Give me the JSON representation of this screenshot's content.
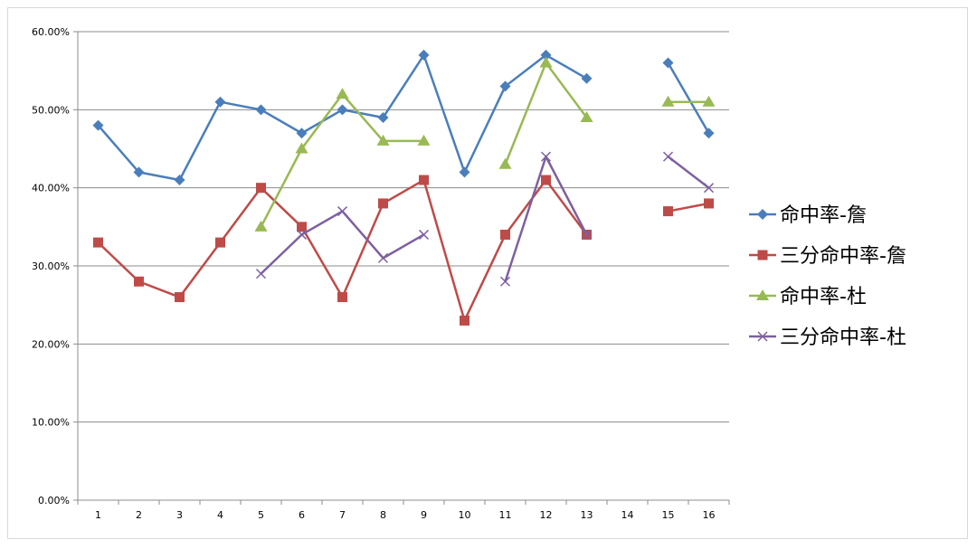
{
  "chart_data": {
    "type": "line",
    "categories": [
      "1",
      "2",
      "3",
      "4",
      "5",
      "6",
      "7",
      "8",
      "9",
      "10",
      "11",
      "12",
      "13",
      "14",
      "15",
      "16"
    ],
    "ylim": [
      0,
      0.6
    ],
    "yticks": [
      {
        "value": 0,
        "label": "0.00%"
      },
      {
        "value": 0.1,
        "label": "10.00%"
      },
      {
        "value": 0.2,
        "label": "20.00%"
      },
      {
        "value": 0.3,
        "label": "30.00%"
      },
      {
        "value": 0.4,
        "label": "40.00%"
      },
      {
        "value": 0.5,
        "label": "50.00%"
      },
      {
        "value": 0.6,
        "label": "60.00%"
      }
    ],
    "grid": true,
    "legend_position": "right",
    "series": [
      {
        "name": "命中率-詹",
        "color": "#4a7ebb",
        "marker": "diamond",
        "values": [
          0.48,
          0.42,
          0.41,
          0.51,
          0.5,
          0.47,
          0.5,
          0.49,
          0.57,
          0.42,
          0.53,
          0.57,
          0.54,
          null,
          0.56,
          0.47
        ]
      },
      {
        "name": "三分命中率-詹",
        "color": "#be4b48",
        "marker": "square",
        "values": [
          0.33,
          0.28,
          0.26,
          0.33,
          0.4,
          0.35,
          0.26,
          0.38,
          0.41,
          0.23,
          0.34,
          0.41,
          0.34,
          null,
          0.37,
          0.38
        ]
      },
      {
        "name": "命中率-杜",
        "color": "#98b954",
        "marker": "triangle",
        "values": [
          null,
          null,
          null,
          null,
          0.35,
          0.45,
          0.52,
          0.46,
          0.46,
          null,
          0.43,
          0.56,
          0.49,
          null,
          0.51,
          0.51
        ]
      },
      {
        "name": "三分命中率-杜",
        "color": "#7d60a0",
        "marker": "x",
        "values": [
          null,
          null,
          null,
          null,
          0.29,
          0.34,
          0.37,
          0.31,
          0.34,
          null,
          0.28,
          0.44,
          0.34,
          null,
          0.44,
          0.4
        ]
      }
    ]
  }
}
